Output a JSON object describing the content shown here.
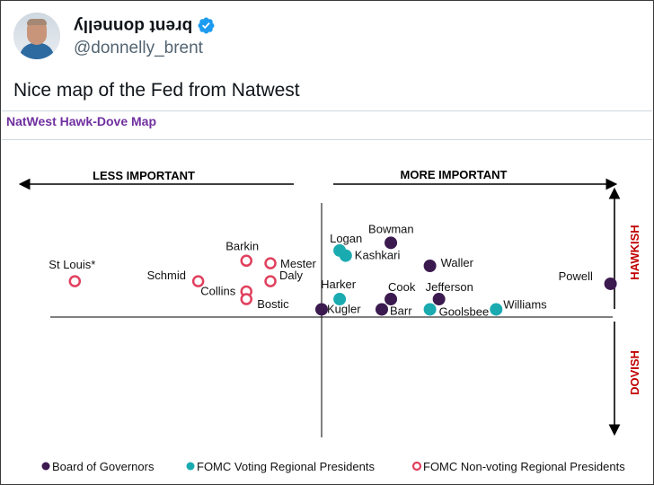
{
  "tweet": {
    "author_name": "brent donnelly",
    "handle": "@donnelly_brent",
    "text": "Nice map of the Fed from Natwest"
  },
  "icons": {
    "avatar": "profile-photo",
    "verified": "verified-badge-icon",
    "verified_color": "#1d9bf0"
  },
  "chart_data": {
    "type": "scatter",
    "title": "NatWest Hawk-Dove Map",
    "title_color": "#7030a0",
    "xlabel_left": "LESS IMPORTANT",
    "xlabel_right": "MORE IMPORTANT",
    "ylabel_top": "HAWKISH",
    "ylabel_bottom": "DOVISH",
    "ylabel_color": "#c00000",
    "xlim": [
      -10,
      10
    ],
    "ylim": [
      -3,
      4
    ],
    "grid": false,
    "legend_position": "bottom",
    "groups": [
      {
        "name": "Board of Governors",
        "color": "#3b1a4f",
        "marker": "filled"
      },
      {
        "name": "FOMC Voting Regional Presidents",
        "color": "#1aabb1",
        "marker": "filled"
      },
      {
        "name": "FOMC Non-voting Regional Presidents",
        "color": "#e0405e",
        "marker": "hollow"
      }
    ],
    "points": [
      {
        "label": "St Louis*",
        "group": 2,
        "x": -8.2,
        "y": 1.4
      },
      {
        "label": "Schmid",
        "group": 2,
        "x": -4.1,
        "y": 1.4
      },
      {
        "label": "Collins",
        "group": 2,
        "x": -2.5,
        "y": 1.0
      },
      {
        "label": "Bostic",
        "group": 2,
        "x": -2.5,
        "y": 0.7
      },
      {
        "label": "Barkin",
        "group": 2,
        "x": -2.5,
        "y": 2.2
      },
      {
        "label": "Mester",
        "group": 2,
        "x": -1.7,
        "y": 2.1
      },
      {
        "label": "Daly",
        "group": 2,
        "x": -1.7,
        "y": 1.4
      },
      {
        "label": "Logan",
        "group": 1,
        "x": 0.6,
        "y": 2.6
      },
      {
        "label": "Kashkari",
        "group": 1,
        "x": 0.8,
        "y": 2.4
      },
      {
        "label": "Harker",
        "group": 1,
        "x": 0.6,
        "y": 0.7
      },
      {
        "label": "Kugler",
        "group": 0,
        "x": 0.0,
        "y": 0.3
      },
      {
        "label": "Bowman",
        "group": 0,
        "x": 2.3,
        "y": 2.9
      },
      {
        "label": "Waller",
        "group": 0,
        "x": 3.6,
        "y": 2.0
      },
      {
        "label": "Cook",
        "group": 0,
        "x": 2.3,
        "y": 0.7
      },
      {
        "label": "Barr",
        "group": 0,
        "x": 2.0,
        "y": 0.3
      },
      {
        "label": "Jefferson",
        "group": 0,
        "x": 3.9,
        "y": 0.7
      },
      {
        "label": "Goolsbee",
        "group": 1,
        "x": 3.6,
        "y": 0.3
      },
      {
        "label": "Williams",
        "group": 1,
        "x": 5.8,
        "y": 0.3
      },
      {
        "label": "Powell",
        "group": 0,
        "x": 9.6,
        "y": 1.3
      }
    ]
  }
}
